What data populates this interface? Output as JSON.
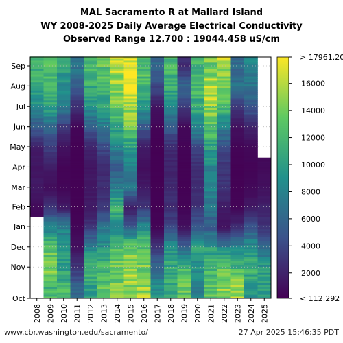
{
  "title_lines": [
    "MAL Sacramento R at Mallard Island",
    "WY 2008-2025 Daily Average Electrical Conductivity",
    "Observed Range 12.700 : 19044.458 uS/cm"
  ],
  "footer": {
    "url": "www.cbr.washington.edu/sacramento/",
    "timestamp": "27 Apr 2025 15:46:35 PDT"
  },
  "colors": {
    "colormap": "viridis",
    "viridis_stops": [
      "#440154",
      "#3b528b",
      "#21918c",
      "#5ec962",
      "#fde725"
    ],
    "background": "#ffffff",
    "grid": "#bbbbbb"
  },
  "chart_data": {
    "type": "heatmap",
    "x_categories": [
      "2008",
      "2009",
      "2010",
      "2011",
      "2012",
      "2013",
      "2014",
      "2015",
      "2016",
      "2017",
      "2018",
      "2019",
      "2020",
      "2021",
      "2022",
      "2023",
      "2024",
      "2025"
    ],
    "y_months": [
      "Oct",
      "Nov",
      "Dec",
      "Jan",
      "Feb",
      "Mar",
      "Apr",
      "May",
      "Jun",
      "Jul",
      "Aug",
      "Sep"
    ],
    "value_unit": "uS/cm",
    "colorbar": {
      "min": 112.292,
      "max": 17961.2,
      "ticks": [
        2000,
        4000,
        6000,
        8000,
        10000,
        12000,
        14000,
        16000
      ],
      "tick_labels": [
        "2000",
        "4000",
        "6000",
        "8000",
        "10000",
        "12000",
        "14000",
        "16000"
      ],
      "top_label": "> 17961.20",
      "bottom_label": "< 112.292"
    },
    "data_start": {
      "2008": "Feb"
    },
    "data_end": {
      "2025": "Apr"
    },
    "monthly_values_approx": [
      [
        null,
        null,
        null,
        null,
        600,
        1500,
        1200,
        1600,
        5000,
        8500,
        11000,
        12000
      ],
      [
        12000,
        14000,
        13000,
        8000,
        3000,
        800,
        1500,
        3500,
        6000,
        10000,
        12000,
        13000
      ],
      [
        12000,
        10000,
        9000,
        8000,
        1500,
        400,
        300,
        1000,
        3000,
        7000,
        9000,
        10000
      ],
      [
        6000,
        3000,
        1000,
        400,
        200,
        200,
        200,
        200,
        400,
        2500,
        5000,
        7000
      ],
      [
        10000,
        12000,
        8000,
        3000,
        1500,
        1500,
        1200,
        2000,
        5000,
        9000,
        11000,
        12000
      ],
      [
        13000,
        12000,
        9000,
        7000,
        3000,
        2500,
        2500,
        4000,
        7000,
        10000,
        12000,
        13000
      ],
      [
        14000,
        14000,
        13000,
        8000,
        12000,
        8000,
        5000,
        8000,
        11000,
        14000,
        15000,
        16000
      ],
      [
        15000,
        15000,
        14000,
        5000,
        1500,
        7000,
        8000,
        10000,
        13000,
        16000,
        17500,
        17961
      ],
      [
        15000,
        14000,
        13000,
        9000,
        3000,
        1500,
        800,
        1500,
        5000,
        9000,
        12000,
        13000
      ],
      [
        9000,
        6000,
        3000,
        300,
        200,
        150,
        150,
        150,
        300,
        1200,
        4000,
        6000
      ],
      [
        11000,
        11000,
        9000,
        4000,
        2500,
        2500,
        2000,
        2500,
        5000,
        9000,
        11000,
        12000
      ],
      [
        13000,
        12000,
        6000,
        1000,
        300,
        200,
        200,
        300,
        500,
        3000,
        6000,
        2500
      ],
      [
        8000,
        9000,
        10000,
        5000,
        3000,
        2500,
        2500,
        4000,
        8000,
        11000,
        12000,
        12000
      ],
      [
        13000,
        12000,
        10000,
        5000,
        7000,
        8000,
        8000,
        10000,
        13000,
        15000,
        16000,
        14000
      ],
      [
        15000,
        13000,
        8000,
        1000,
        1500,
        3000,
        3000,
        4000,
        8000,
        12000,
        15000,
        16000
      ],
      [
        15000,
        12000,
        8000,
        2500,
        400,
        200,
        200,
        300,
        1000,
        3000,
        7000,
        6000
      ],
      [
        9000,
        12000,
        9000,
        5000,
        1500,
        500,
        300,
        500,
        2000,
        5000,
        7000,
        8000
      ],
      [
        10000,
        10000,
        6000,
        3000,
        2000,
        1000,
        600,
        null,
        null,
        null,
        null,
        null
      ]
    ]
  }
}
